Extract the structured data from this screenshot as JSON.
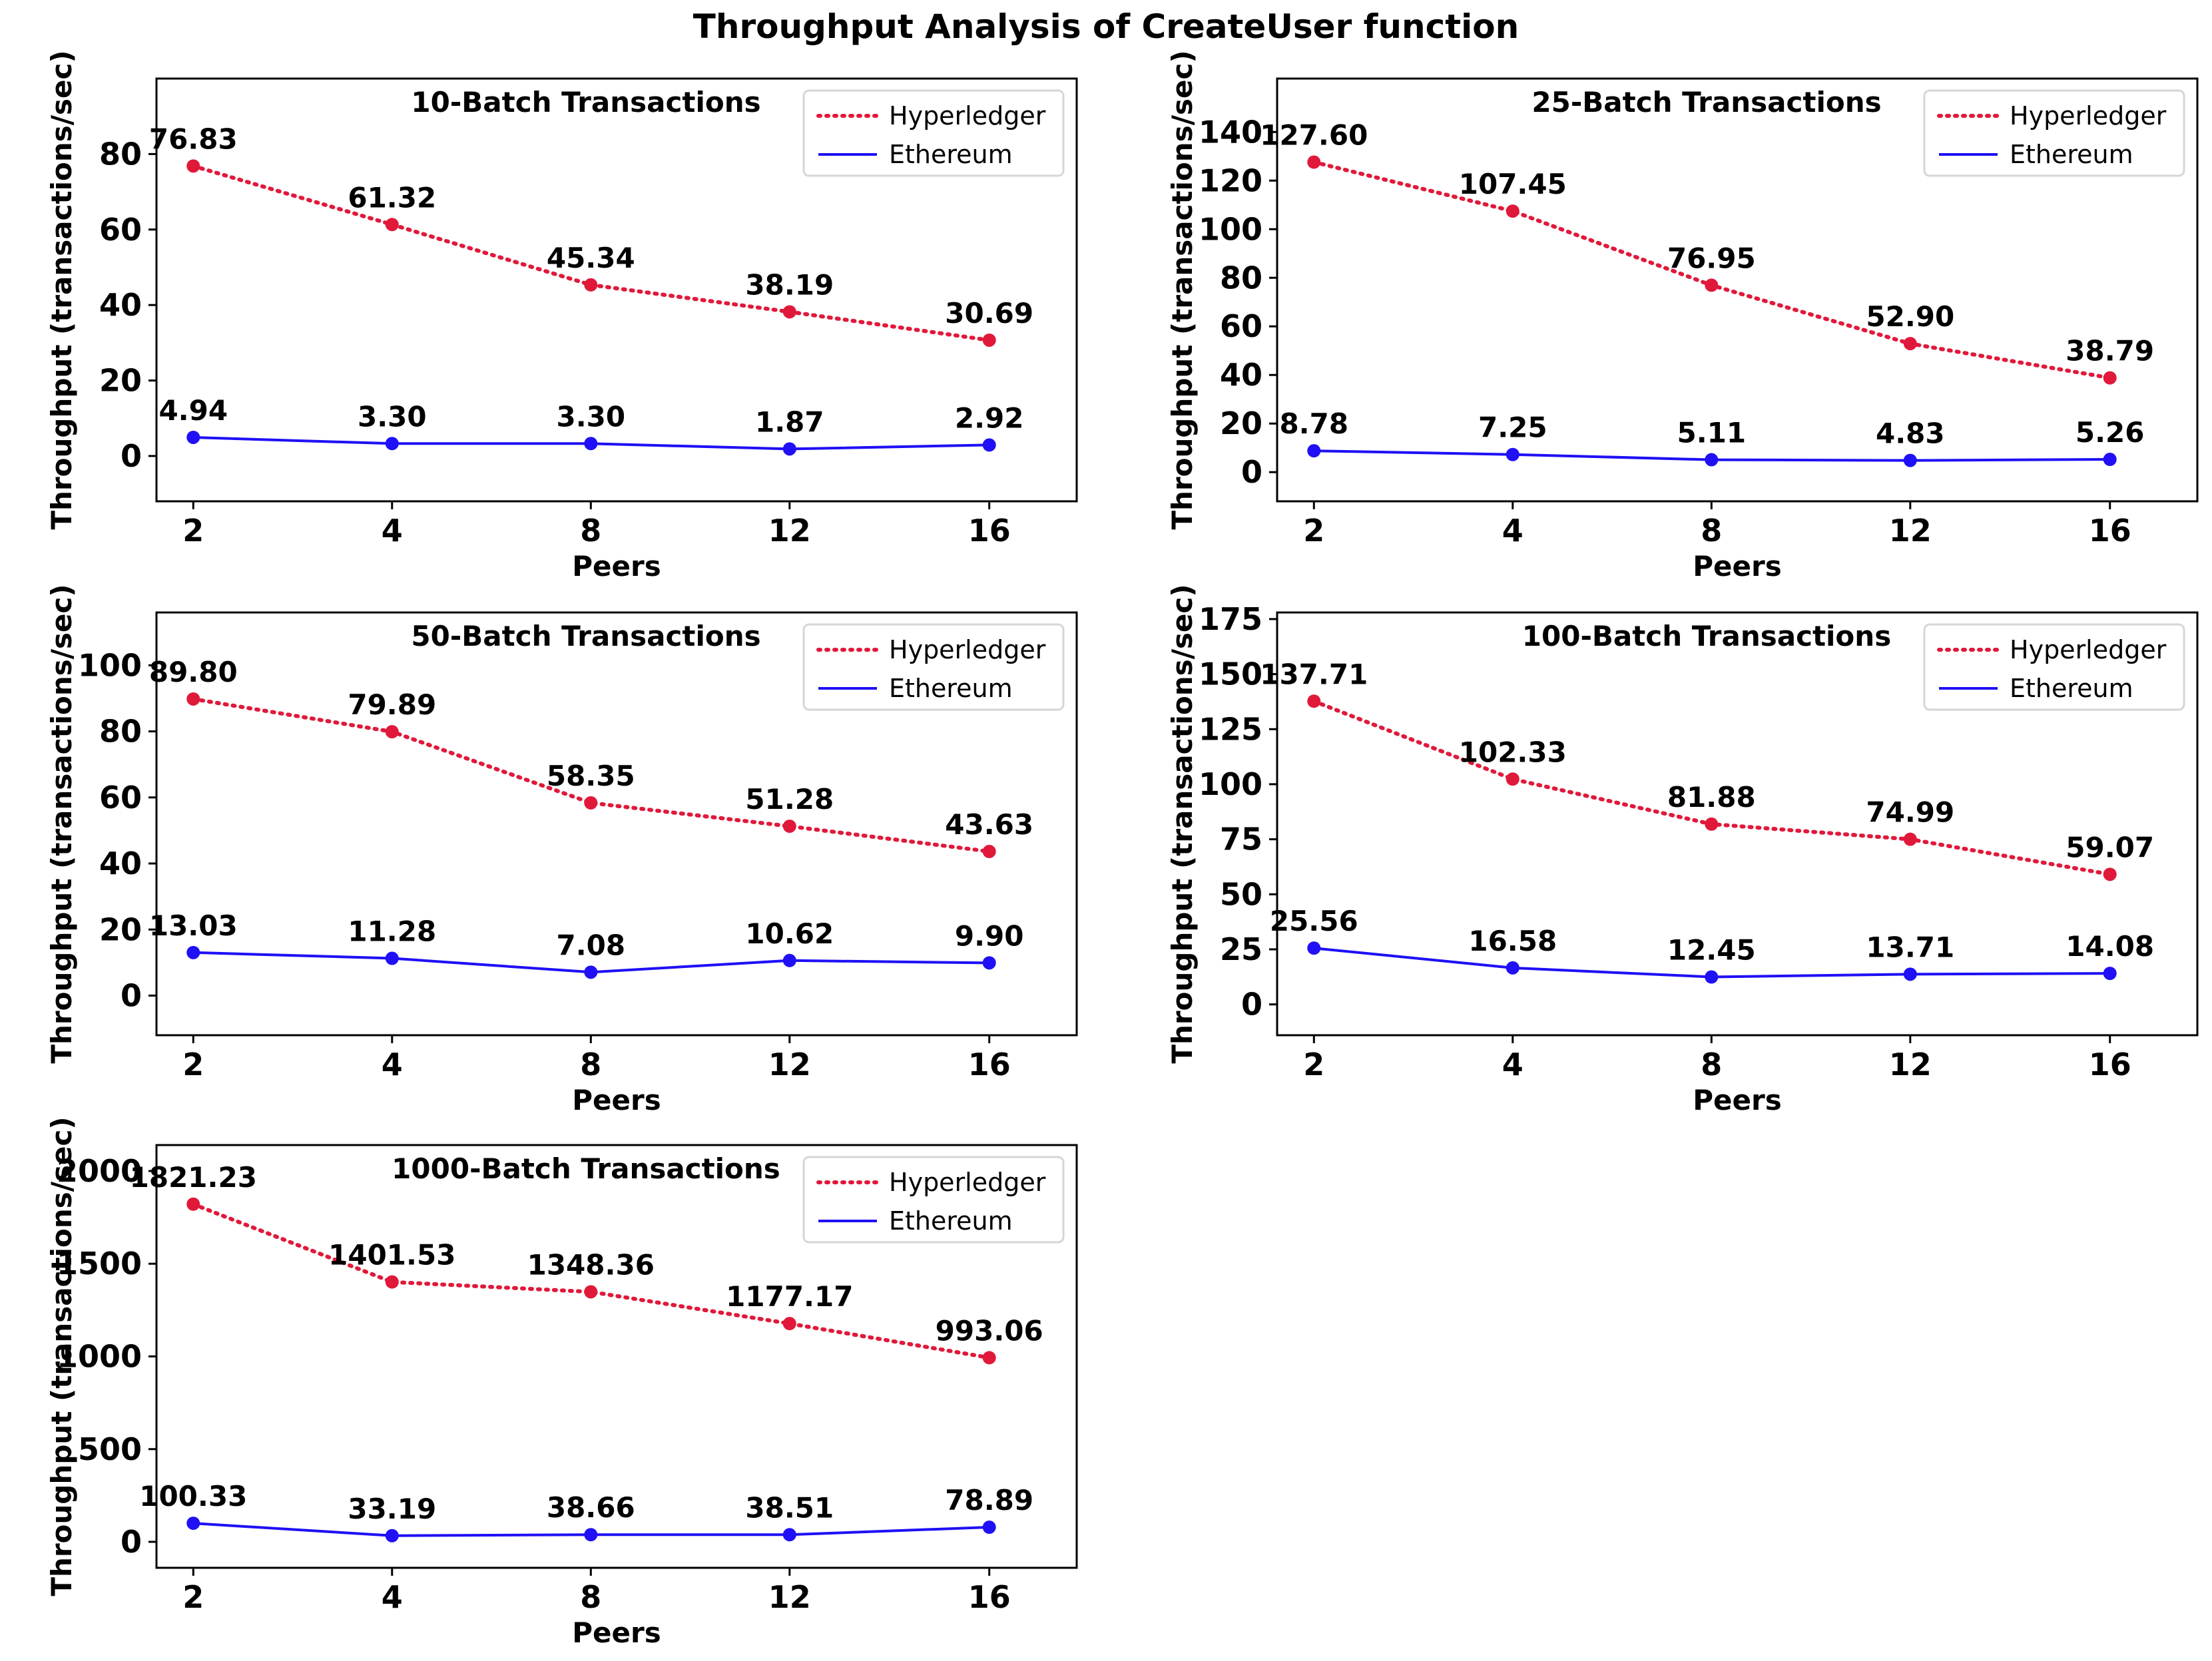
{
  "chart_data": {
    "title": "Throughput Analysis of CreateUser function",
    "colors": {
      "hyperledger": "#e0193a",
      "ethereum": "#1f10f5"
    },
    "legend": [
      "Hyperledger",
      "Ethereum"
    ],
    "panels": [
      {
        "type": "line",
        "title": "10-Batch Transactions",
        "xlabel": "Peers",
        "ylabel": "Throughput (transactions/sec)",
        "categories": [
          "2",
          "4",
          "8",
          "12",
          "16"
        ],
        "ylim": [
          -12,
          100
        ],
        "yticks": [
          0,
          20,
          40,
          60,
          80
        ],
        "legend_position": "top-right",
        "series": [
          {
            "name": "Hyperledger",
            "style": "dotted",
            "values": [
              76.83,
              61.32,
              45.34,
              38.19,
              30.69
            ],
            "labels": [
              "76.83",
              "61.32",
              "45.34",
              "38.19",
              "30.69"
            ]
          },
          {
            "name": "Ethereum",
            "style": "solid",
            "values": [
              4.94,
              3.3,
              3.3,
              1.87,
              2.92
            ],
            "labels": [
              "4.94",
              "3.30",
              "3.30",
              "1.87",
              "2.92"
            ]
          }
        ]
      },
      {
        "type": "line",
        "title": "25-Batch Transactions",
        "xlabel": "Peers",
        "ylabel": "Throughput (transactions/sec)",
        "categories": [
          "2",
          "4",
          "8",
          "12",
          "16"
        ],
        "ylim": [
          -12,
          162
        ],
        "yticks": [
          0,
          20,
          40,
          60,
          80,
          100,
          120,
          140
        ],
        "legend_position": "top-right",
        "series": [
          {
            "name": "Hyperledger",
            "style": "dotted",
            "values": [
              127.6,
              107.45,
              76.95,
              52.9,
              38.79
            ],
            "labels": [
              "127.60",
              "107.45",
              "76.95",
              "52.90",
              "38.79"
            ]
          },
          {
            "name": "Ethereum",
            "style": "solid",
            "values": [
              8.78,
              7.25,
              5.11,
              4.83,
              5.26
            ],
            "labels": [
              "8.78",
              "7.25",
              "5.11",
              "4.83",
              "5.26"
            ]
          }
        ]
      },
      {
        "type": "line",
        "title": "50-Batch Transactions",
        "xlabel": "Peers",
        "ylabel": "Throughput (transactions/sec)",
        "categories": [
          "2",
          "4",
          "8",
          "12",
          "16"
        ],
        "ylim": [
          -12,
          116
        ],
        "yticks": [
          0,
          20,
          40,
          60,
          80,
          100
        ],
        "legend_position": "top-right",
        "series": [
          {
            "name": "Hyperledger",
            "style": "dotted",
            "values": [
              89.8,
              79.89,
              58.35,
              51.28,
              43.63
            ],
            "labels": [
              "89.80",
              "79.89",
              "58.35",
              "51.28",
              "43.63"
            ]
          },
          {
            "name": "Ethereum",
            "style": "solid",
            "values": [
              13.03,
              11.28,
              7.08,
              10.62,
              9.9
            ],
            "labels": [
              "13.03",
              "11.28",
              "7.08",
              "10.62",
              "9.90"
            ]
          }
        ]
      },
      {
        "type": "line",
        "title": "100-Batch Transactions",
        "xlabel": "Peers",
        "ylabel": "Throughput (transactions/sec)",
        "categories": [
          "2",
          "4",
          "8",
          "12",
          "16"
        ],
        "ylim": [
          -14,
          178
        ],
        "yticks": [
          0,
          25,
          50,
          75,
          100,
          125,
          150,
          175
        ],
        "legend_position": "top-right",
        "series": [
          {
            "name": "Hyperledger",
            "style": "dotted",
            "values": [
              137.71,
              102.33,
              81.88,
              74.99,
              59.07
            ],
            "labels": [
              "137.71",
              "102.33",
              "81.88",
              "74.99",
              "59.07"
            ]
          },
          {
            "name": "Ethereum",
            "style": "solid",
            "values": [
              25.56,
              16.58,
              12.45,
              13.71,
              14.08
            ],
            "labels": [
              "25.56",
              "16.58",
              "12.45",
              "13.71",
              "14.08"
            ]
          }
        ]
      },
      {
        "type": "line",
        "title": "1000-Batch Transactions",
        "xlabel": "Peers",
        "ylabel": "Throughput (transactions/sec)",
        "categories": [
          "2",
          "4",
          "8",
          "12",
          "16"
        ],
        "ylim": [
          -140,
          2140
        ],
        "yticks": [
          0,
          500,
          1000,
          1500,
          2000
        ],
        "legend_position": "top-right",
        "series": [
          {
            "name": "Hyperledger",
            "style": "dotted",
            "values": [
              1821.23,
              1401.53,
              1348.36,
              1177.17,
              993.06
            ],
            "labels": [
              "1821.23",
              "1401.53",
              "1348.36",
              "1177.17",
              "993.06"
            ]
          },
          {
            "name": "Ethereum",
            "style": "solid",
            "values": [
              100.33,
              33.19,
              38.66,
              38.51,
              78.89
            ],
            "labels": [
              "100.33",
              "33.19",
              "38.66",
              "38.51",
              "78.89"
            ]
          }
        ]
      }
    ]
  }
}
